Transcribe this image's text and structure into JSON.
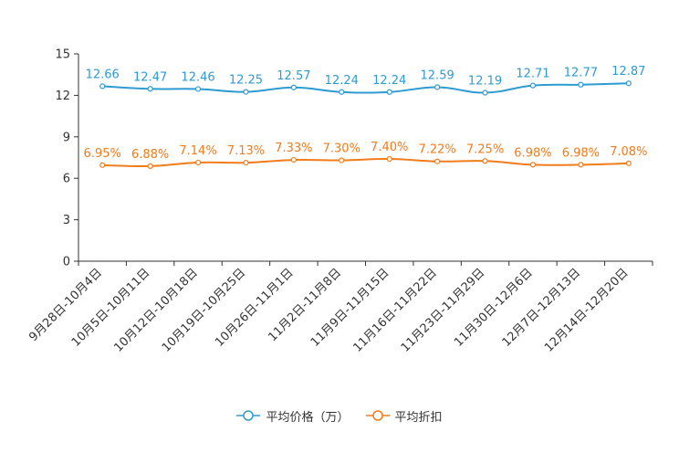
{
  "chart_data": {
    "type": "line",
    "categories": [
      "9月28日-10月4日",
      "10月5日-10月11日",
      "10月12日-10月18日",
      "10月19日-10月25日",
      "10月26日-11月1日",
      "11月2日-11月8日",
      "11月9日-11月15日",
      "11月16日-11月22日",
      "11月23日-11月29日",
      "11月30日-12月6日",
      "12月7日-12月13日",
      "12月14日-12月20日"
    ],
    "yticks": [
      "0",
      "3",
      "6",
      "9",
      "12",
      "15"
    ],
    "ylim": [
      0,
      15
    ],
    "series": [
      {
        "name": "平均价格（万）",
        "color": "#2e9bd1",
        "values": [
          12.66,
          12.47,
          12.46,
          12.25,
          12.57,
          12.24,
          12.24,
          12.59,
          12.19,
          12.71,
          12.77,
          12.87
        ],
        "labels": [
          "12.66",
          "12.47",
          "12.46",
          "12.25",
          "12.57",
          "12.24",
          "12.24",
          "12.59",
          "12.19",
          "12.71",
          "12.77",
          "12.87"
        ]
      },
      {
        "name": "平均折扣",
        "color": "#f07c1c",
        "values": [
          6.95,
          6.88,
          7.14,
          7.13,
          7.33,
          7.3,
          7.4,
          7.22,
          7.25,
          6.98,
          6.98,
          7.08
        ],
        "labels": [
          "6.95%",
          "6.88%",
          "7.14%",
          "7.13%",
          "7.33%",
          "7.30%",
          "7.40%",
          "7.22%",
          "7.25%",
          "6.98%",
          "6.98%",
          "7.08%"
        ]
      }
    ],
    "legend_position": "bottom-center"
  }
}
